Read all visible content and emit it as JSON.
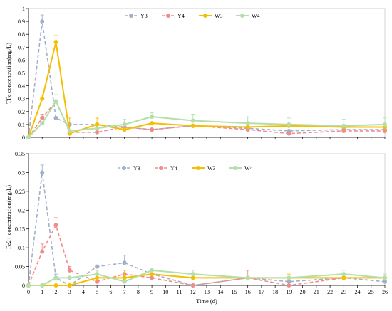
{
  "chart_data": [
    {
      "type": "line",
      "ylabel": "TFe  concentration(mg/L)",
      "xlabel": "",
      "ylim": [
        0,
        1
      ],
      "yticks": [
        "0",
        "0.1",
        "0.2",
        "0.3",
        "0.4",
        "0.5",
        "0.6",
        "0.7",
        "0.8",
        "0.9",
        "1"
      ],
      "x": [
        0,
        1,
        2,
        3,
        5,
        7,
        9,
        12,
        16,
        19,
        23,
        26
      ],
      "legend_position": "top",
      "series": [
        {
          "name": "Y3",
          "color": "#a0b0c8",
          "dash": true,
          "values": [
            0,
            0.9,
            0.15,
            0.1,
            0.1,
            0.08,
            0.06,
            0.09,
            0.07,
            0.05,
            0.06,
            0.06
          ],
          "errors": [
            0,
            0.05,
            0.0,
            0.0,
            0.0,
            0.0,
            0.0,
            0.0,
            0.0,
            0.0,
            0.0,
            0.0
          ]
        },
        {
          "name": "Y4",
          "color": "#f08c8c",
          "dash": true,
          "values": [
            0,
            0.15,
            0.28,
            0.04,
            0.04,
            0.08,
            0.06,
            0.09,
            0.06,
            0.03,
            0.05,
            0.05
          ],
          "errors": [
            0,
            0.03,
            0.05,
            0.0,
            0.0,
            0.0,
            0.0,
            0.0,
            0.0,
            0.0,
            0.0,
            0.0
          ]
        },
        {
          "name": "W3",
          "color": "#f5be00",
          "dash": false,
          "values": [
            0,
            0.3,
            0.74,
            0.03,
            0.1,
            0.06,
            0.11,
            0.09,
            0.08,
            0.09,
            0.08,
            0.08
          ],
          "errors": [
            0,
            0.03,
            0.05,
            0.12,
            0.05,
            0.0,
            0.0,
            0.0,
            0.0,
            0.0,
            0.0,
            0.0
          ]
        },
        {
          "name": "W4",
          "color": "#b4deaa",
          "dash": false,
          "values": [
            0,
            0.11,
            0.28,
            0.05,
            0.07,
            0.1,
            0.16,
            0.13,
            0.11,
            0.1,
            0.09,
            0.1
          ],
          "errors": [
            0,
            0.0,
            0.05,
            0.0,
            0.0,
            0.04,
            0.03,
            0.05,
            0.05,
            0.05,
            0.05,
            0.05
          ]
        }
      ]
    },
    {
      "type": "line",
      "ylabel": "Fe2+  concentration(mg/L)",
      "xlabel": "Time (d)",
      "ylim": [
        0,
        0.35
      ],
      "yticks": [
        "0",
        "0.05",
        "0.1",
        "0.15",
        "0.2",
        "0.25",
        "0.3",
        "0.35"
      ],
      "xticks": [
        "0",
        "1",
        "2",
        "3",
        "4",
        "5",
        "6",
        "7",
        "8",
        "9",
        "10",
        "11",
        "12",
        "13",
        "14",
        "15",
        "16",
        "17",
        "18",
        "19",
        "20",
        "21",
        "22",
        "23",
        "24",
        "25",
        "26"
      ],
      "x": [
        0,
        1,
        2,
        3,
        5,
        7,
        9,
        12,
        16,
        19,
        23,
        26
      ],
      "legend_position": "top",
      "series": [
        {
          "name": "Y3",
          "color": "#a0b0c8",
          "dash": true,
          "values": [
            0,
            0.3,
            0.02,
            0.0,
            0.05,
            0.06,
            0.03,
            0.0,
            0.02,
            0.01,
            0.02,
            0.01
          ],
          "errors": [
            0,
            0.02,
            0.01,
            0.0,
            0.0,
            0.02,
            0.0,
            0.0,
            0.0,
            0.0,
            0.0,
            0.0
          ]
        },
        {
          "name": "Y4",
          "color": "#f08c8c",
          "dash": true,
          "values": [
            0,
            0.09,
            0.16,
            0.04,
            0.01,
            0.03,
            0.02,
            0.0,
            0.02,
            0.0,
            0.02,
            0.02
          ],
          "errors": [
            0,
            0.02,
            0.02,
            0.01,
            0.0,
            0.0,
            0.0,
            0.0,
            0.02,
            0.0,
            0.0,
            0.0
          ]
        },
        {
          "name": "W3",
          "color": "#f5be00",
          "dash": false,
          "values": [
            0,
            0.0,
            0.0,
            0.0,
            0.02,
            0.02,
            0.03,
            0.02,
            0.02,
            0.02,
            0.02,
            0.02
          ],
          "errors": [
            0,
            0.0,
            0.0,
            0.0,
            0.02,
            0.02,
            0.0,
            0.0,
            0.0,
            0.01,
            0.0,
            0.0
          ]
        },
        {
          "name": "W4",
          "color": "#b4deaa",
          "dash": false,
          "values": [
            0,
            0.0,
            0.02,
            0.02,
            0.03,
            0.01,
            0.04,
            0.03,
            0.02,
            0.02,
            0.03,
            0.02
          ],
          "errors": [
            0,
            0.0,
            0.0,
            0.0,
            0.01,
            0.0,
            0.0,
            0.01,
            0.0,
            0.0,
            0.01,
            0.01
          ]
        }
      ]
    }
  ]
}
